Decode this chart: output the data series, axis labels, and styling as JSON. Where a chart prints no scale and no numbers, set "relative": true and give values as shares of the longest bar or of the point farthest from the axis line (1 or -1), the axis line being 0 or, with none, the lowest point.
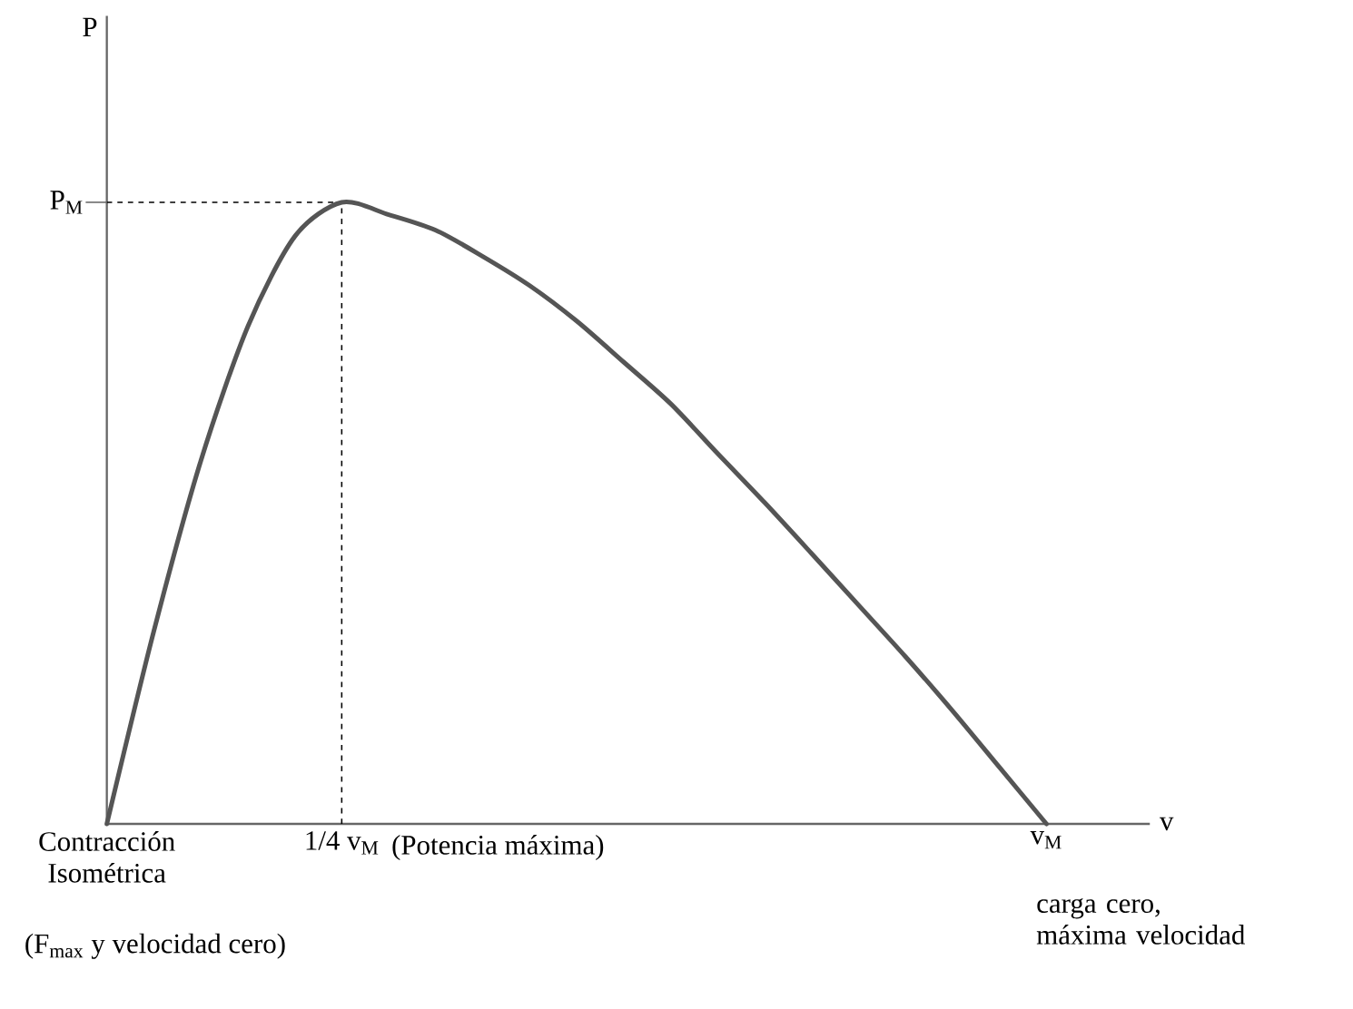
{
  "chart_data": {
    "type": "line",
    "relative": true,
    "xlabel": "v",
    "categories": [
      "Contracción Isométrica",
      null,
      null,
      null,
      null,
      "1/4 v$_{M}$",
      null,
      null,
      null,
      null,
      null,
      null,
      null,
      null,
      null,
      null,
      null,
      null,
      null,
      null,
      "v$_{M}$"
    ],
    "values": [
      0,
      0.31,
      0.584,
      0.8,
      0.945,
      1,
      0.98,
      0.955,
      0.913,
      0.866,
      0.809,
      0.743,
      0.676,
      0.596,
      0.517,
      0.435,
      0.352,
      0.269,
      0.182,
      0.091,
      0
    ],
    "color": "#555555",
    "line_style": "solid",
    "marker": "none",
    "ref_lines": [
      {
        "axis": "x",
        "value": "1/4 v$_{M}$",
        "line_style": "dashed"
      },
      {
        "axis": "y",
        "value": 1,
        "label": "P$_{M}$",
        "line_style": "dashed"
      }
    ],
    "annotations": [
      "(Potencia máxima)",
      "carga cero, máxima velocidad",
      "(F$_{max}$ y velocidad cero)",
      "P"
    ]
  }
}
